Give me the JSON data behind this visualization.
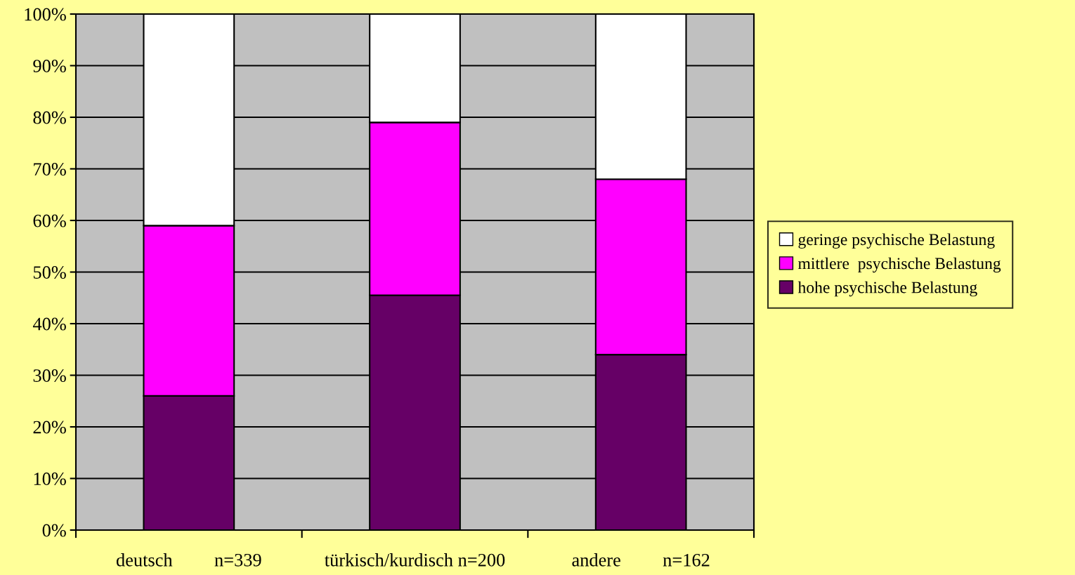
{
  "chart_data": {
    "type": "bar",
    "stacked": true,
    "categories": [
      "deutsch         n=339",
      "türkisch/kurdisch n=200",
      "andere         n=162"
    ],
    "series": [
      {
        "name": "hohe psychische Belastung",
        "color": "#660066",
        "values": [
          26,
          45.5,
          34
        ]
      },
      {
        "name": "mittlere  psychische Belastung",
        "color": "#ff00ff",
        "values": [
          33,
          33.5,
          34
        ]
      },
      {
        "name": "geringe psychische Belastung",
        "color": "#ffffff",
        "values": [
          41,
          21,
          32
        ]
      }
    ],
    "ylim": [
      0,
      100
    ],
    "yticks": [
      {
        "value": 0,
        "label": "0%"
      },
      {
        "value": 10,
        "label": "10%"
      },
      {
        "value": 20,
        "label": "20%"
      },
      {
        "value": 30,
        "label": "30%"
      },
      {
        "value": 40,
        "label": "40%"
      },
      {
        "value": 50,
        "label": "50%"
      },
      {
        "value": 60,
        "label": "60%"
      },
      {
        "value": 70,
        "label": "70%"
      },
      {
        "value": 80,
        "label": "80%"
      },
      {
        "value": 90,
        "label": "90%"
      },
      {
        "value": 100,
        "label": "100%"
      }
    ],
    "grid": "y",
    "legend": "right"
  }
}
